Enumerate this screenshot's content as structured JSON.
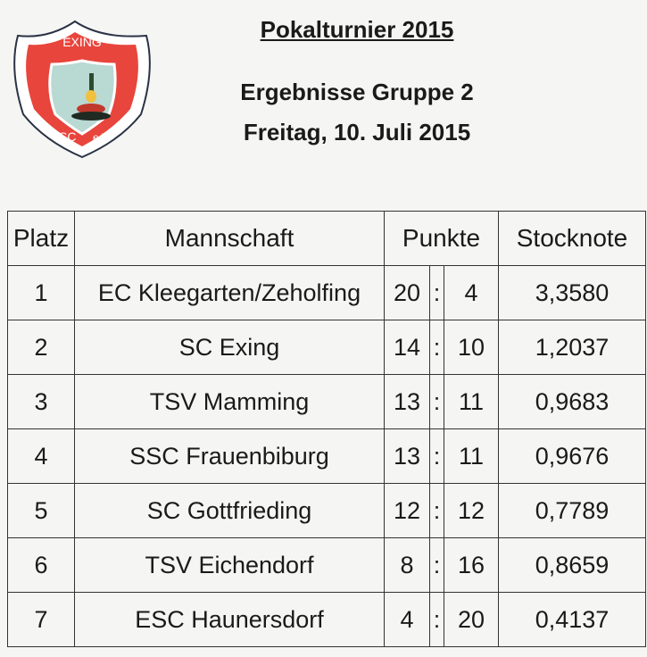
{
  "logo": {
    "top_text": "EXING",
    "bottom_left": "SC",
    "bottom_right": "e.V.",
    "colors": {
      "border": "#e8453c",
      "field": "#b9d9d3",
      "outline": "#2a3345"
    }
  },
  "header": {
    "title": "Pokalturnier 2015",
    "subtitle": "Ergebnisse Gruppe 2",
    "date": "Freitag, 10. Juli 2015"
  },
  "table": {
    "columns": {
      "platz": "Platz",
      "mannschaft": "Mannschaft",
      "punkte": "Punkte",
      "stocknote": "Stocknote"
    },
    "rows": [
      {
        "platz": "1",
        "team": "EC Kleegarten/Zeholfing",
        "plus": "20",
        "sep": ":",
        "minus": "4",
        "note": "3,3580"
      },
      {
        "platz": "2",
        "team": "SC Exing",
        "plus": "14",
        "sep": ":",
        "minus": "10",
        "note": "1,2037"
      },
      {
        "platz": "3",
        "team": "TSV Mamming",
        "plus": "13",
        "sep": ":",
        "minus": "11",
        "note": "0,9683"
      },
      {
        "platz": "4",
        "team": "SSC Frauenbiburg",
        "plus": "13",
        "sep": ":",
        "minus": "11",
        "note": "0,9676"
      },
      {
        "platz": "5",
        "team": "SC Gottfrieding",
        "plus": "12",
        "sep": ":",
        "minus": "12",
        "note": "0,7789"
      },
      {
        "platz": "6",
        "team": "TSV Eichendorf",
        "plus": "8",
        "sep": ":",
        "minus": "16",
        "note": "0,8659"
      },
      {
        "platz": "7",
        "team": "ESC Haunersdorf",
        "plus": "4",
        "sep": ":",
        "minus": "20",
        "note": "0,4137"
      }
    ]
  }
}
